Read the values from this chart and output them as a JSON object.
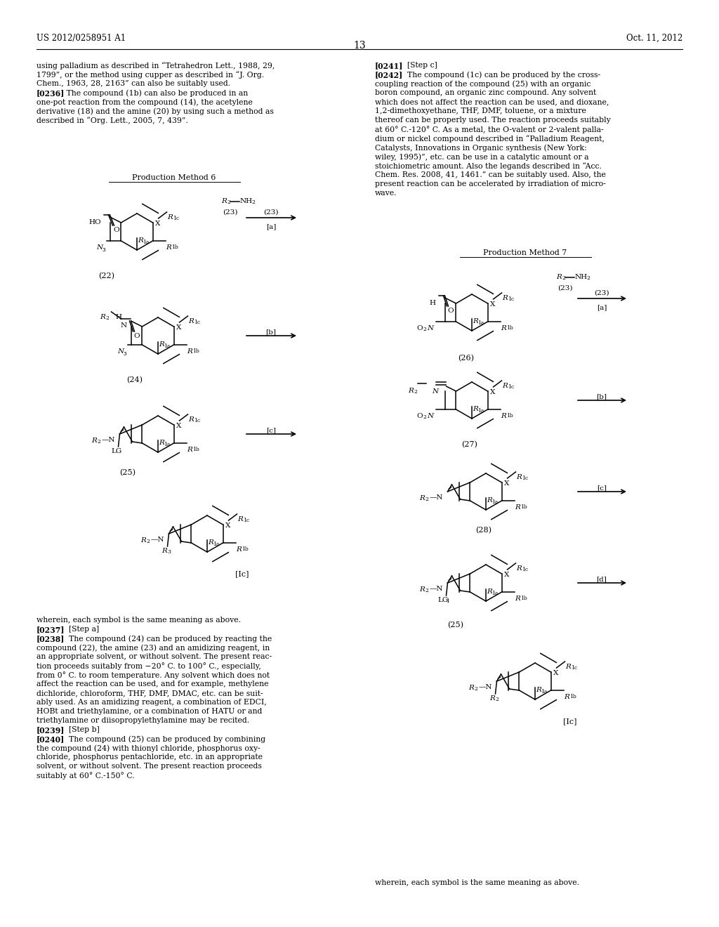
{
  "page_number": "13",
  "patent_number": "US 2012/0258951 A1",
  "patent_date": "Oct. 11, 2012",
  "background_color": "#ffffff",
  "text_color": "#000000"
}
